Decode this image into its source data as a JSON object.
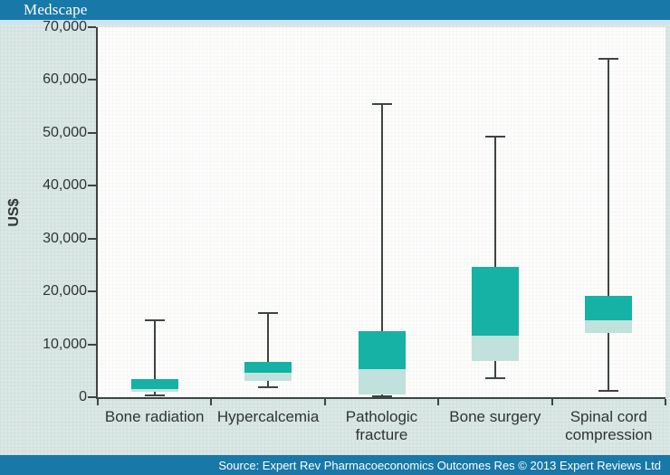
{
  "header": {
    "brand": "Medscape"
  },
  "footer": {
    "source_text": "Source: Expert Rev Pharmacoeconomics Outcomes Res © 2013 Expert Reviews Ltd"
  },
  "chart_data": {
    "type": "box",
    "title": "",
    "xlabel": "",
    "ylabel": "US$",
    "ylim": [
      0,
      70000
    ],
    "grid": false,
    "legend": false,
    "yticks": [
      0,
      10000,
      20000,
      30000,
      40000,
      50000,
      60000,
      70000
    ],
    "ytick_labels": [
      "0",
      "10,000",
      "20,000",
      "30,000",
      "40,000",
      "50,000",
      "60,000",
      "70,000"
    ],
    "categories": [
      "Bone radiation",
      "Hypercalcemia",
      "Pathologic fracture",
      "Bone surgery",
      "Spinal cord compression"
    ],
    "series": [
      {
        "name": "Bone radiation",
        "min": 400,
        "q1": 1000,
        "median": 1600,
        "q3": 3400,
        "max": 14500
      },
      {
        "name": "Hypercalcemia",
        "min": 1800,
        "q1": 3000,
        "median": 4600,
        "q3": 6700,
        "max": 16000
      },
      {
        "name": "Pathologic fracture",
        "min": 100,
        "q1": 500,
        "median": 5300,
        "q3": 12500,
        "max": 55500
      },
      {
        "name": "Bone surgery",
        "min": 3600,
        "q1": 6900,
        "median": 11700,
        "q3": 24700,
        "max": 49300
      },
      {
        "name": "Spinal cord compression",
        "min": 1200,
        "q1": 12100,
        "median": 14600,
        "q3": 19200,
        "max": 64000
      }
    ],
    "colors": {
      "box_upper_median_to_q3": "#15b2a5",
      "box_lower_q1_to_median": "#c0e1dc",
      "whisker": "#3e4444",
      "axis": "#3e4444",
      "accent_blue": "#1878a8"
    }
  }
}
